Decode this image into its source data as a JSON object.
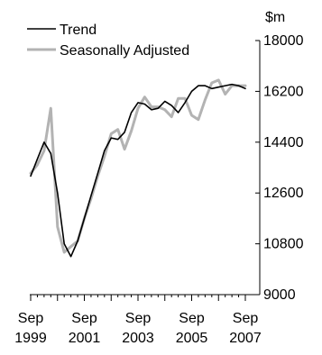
{
  "chart_data": {
    "type": "line",
    "ylabel": "$m",
    "ylim": [
      9000,
      18000
    ],
    "y_ticks": [
      "18000",
      "16200",
      "14400",
      "12600",
      "10800",
      "9000"
    ],
    "x_tick_labels": [
      {
        "month": "Sep",
        "year": "1999"
      },
      {
        "month": "Sep",
        "year": "2001"
      },
      {
        "month": "Sep",
        "year": "2003"
      },
      {
        "month": "Sep",
        "year": "2005"
      },
      {
        "month": "Sep",
        "year": "2007"
      }
    ],
    "x": [
      "Sep 1999",
      "Dec 1999",
      "Mar 2000",
      "Jun 2000",
      "Sep 2000",
      "Dec 2000",
      "Mar 2001",
      "Jun 2001",
      "Sep 2001",
      "Dec 2001",
      "Mar 2002",
      "Jun 2002",
      "Sep 2002",
      "Dec 2002",
      "Mar 2003",
      "Jun 2003",
      "Sep 2003",
      "Dec 2003",
      "Mar 2004",
      "Jun 2004",
      "Sep 2004",
      "Dec 2004",
      "Mar 2005",
      "Jun 2005",
      "Sep 2005",
      "Dec 2005",
      "Mar 2006",
      "Jun 2006",
      "Sep 2006",
      "Dec 2006",
      "Mar 2007",
      "Jun 2007",
      "Sep 2007"
    ],
    "series": [
      {
        "name": "Trend",
        "color": "#000000",
        "values": [
          13200,
          13800,
          14400,
          14000,
          12600,
          10800,
          10350,
          10900,
          11700,
          12500,
          13300,
          14100,
          14550,
          14500,
          14750,
          15450,
          15800,
          15750,
          15550,
          15600,
          15850,
          15700,
          15450,
          15800,
          16200,
          16400,
          16400,
          16300,
          16350,
          16400,
          16450,
          16400,
          16300
        ]
      },
      {
        "name": "Seasonally Adjusted",
        "color": "#b3b3b3",
        "values": [
          13300,
          13600,
          14100,
          15600,
          11400,
          10500,
          10700,
          10900,
          11700,
          12400,
          13200,
          13900,
          14700,
          14850,
          14150,
          14800,
          15600,
          16000,
          15650,
          15650,
          15550,
          15300,
          15950,
          15950,
          15350,
          15200,
          15900,
          16500,
          16600,
          16100,
          16400,
          16400,
          16400
        ]
      }
    ],
    "legend_position": "top-left",
    "grid": false
  }
}
